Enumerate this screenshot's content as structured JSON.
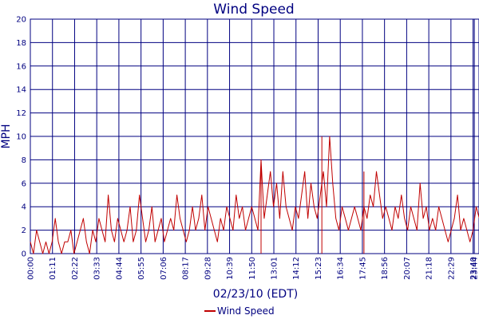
{
  "chart_data": {
    "type": "line",
    "title": "Wind Speed",
    "xlabel": "02/23/10 (EDT)",
    "ylabel": "MPH",
    "ylim": [
      0,
      20
    ],
    "yticks": [
      0,
      2,
      4,
      6,
      8,
      10,
      12,
      14,
      16,
      18,
      20
    ],
    "xlim": [
      "00:00",
      "23:59"
    ],
    "xticks": [
      "00:00",
      "01:11",
      "02:22",
      "03:33",
      "04:44",
      "05:55",
      "07:06",
      "08:17",
      "09:28",
      "10:39",
      "11:50",
      "13:01",
      "14:12",
      "15:23",
      "16:34",
      "17:45",
      "18:56",
      "20:07",
      "21:18",
      "22:29",
      "23:40",
      "23:44"
    ],
    "grid": true,
    "legend": "bottom-center",
    "series": [
      {
        "name": "Wind Speed",
        "color": "#c00000",
        "samples_per_point_minutes": 10,
        "x_start": "00:00",
        "values": [
          1,
          0,
          2,
          1,
          0,
          1,
          0,
          1,
          3,
          1,
          0,
          1,
          1,
          2,
          0,
          1,
          2,
          3,
          1,
          0,
          2,
          1,
          3,
          2,
          1,
          5,
          2,
          1,
          3,
          2,
          1,
          2,
          4,
          1,
          2,
          5,
          3,
          1,
          2,
          4,
          1,
          2,
          3,
          1,
          2,
          3,
          2,
          5,
          3,
          2,
          1,
          2,
          4,
          2,
          3,
          5,
          2,
          4,
          3,
          2,
          1,
          3,
          2,
          4,
          3,
          2,
          5,
          3,
          4,
          2,
          3,
          4,
          3,
          2,
          8,
          3,
          5,
          7,
          4,
          6,
          3,
          7,
          4,
          3,
          2,
          4,
          3,
          5,
          7,
          3,
          6,
          4,
          3,
          5,
          7,
          4,
          10,
          6,
          3,
          2,
          4,
          3,
          2,
          3,
          4,
          3,
          2,
          4,
          3,
          5,
          4,
          7,
          5,
          3,
          4,
          3,
          2,
          4,
          3,
          5,
          3,
          2,
          4,
          3,
          2,
          6,
          3,
          4,
          2,
          3,
          2,
          4,
          3,
          2,
          1,
          2,
          3,
          5,
          2,
          3,
          2,
          1,
          2,
          4,
          3,
          2
        ]
      }
    ],
    "peak_annotations": [
      {
        "x": "12:20",
        "y": 8
      },
      {
        "x": "15:35",
        "y": 10
      },
      {
        "x": "17:50",
        "y": 7
      }
    ]
  }
}
